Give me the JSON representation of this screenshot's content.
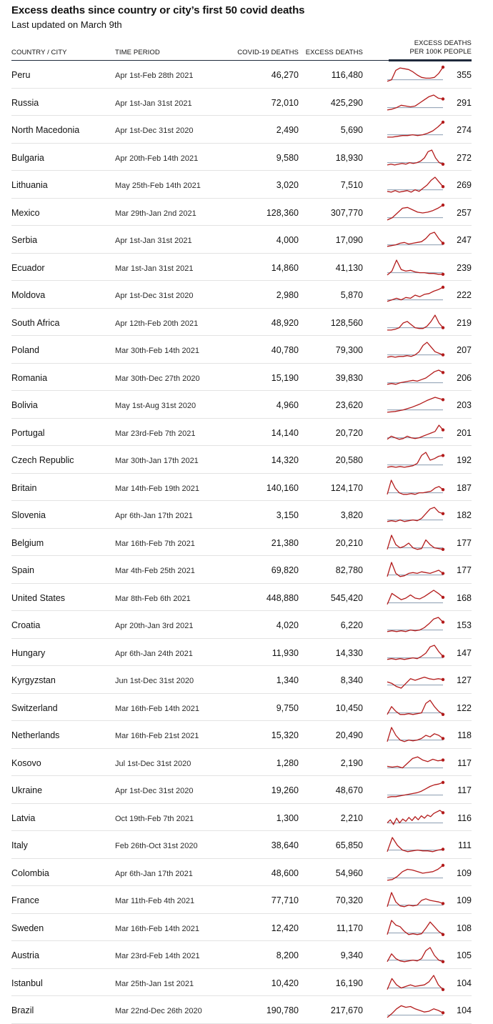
{
  "header": {
    "title": "Excess deaths since country or city’s first 50 covid deaths",
    "subtitle": "Last updated on March 9th"
  },
  "columns": {
    "country": "COUNTRY / CITY",
    "period": "TIME PERIOD",
    "covid": "COVID-19 DEATHS",
    "excess": "EXCESS DEATHS",
    "per_line1": "EXCESS DEATHS",
    "per_line2": "PER 100K PEOPLE"
  },
  "colors": {
    "line": "#b31b1b",
    "baseline": "#8a9bb0",
    "text": "#121212",
    "divider": "#1f2a3c"
  },
  "chart_data": {
    "type": "table",
    "columns": [
      "COUNTRY / CITY",
      "TIME PERIOD",
      "COVID-19 DEATHS",
      "EXCESS DEATHS",
      "EXCESS DEATHS PER 100K PEOPLE"
    ],
    "rows": [
      {
        "country": "Peru",
        "period": "Apr 1st-Feb 28th 2021",
        "covid": "46,270",
        "excess": "116,480",
        "rate": "355",
        "trend": [
          0.1,
          0.2,
          0.8,
          0.95,
          0.9,
          0.85,
          0.7,
          0.5,
          0.35,
          0.3,
          0.3,
          0.35,
          0.6,
          1.0
        ]
      },
      {
        "country": "Russia",
        "period": "Apr 1st-Jan 31st 2021",
        "covid": "72,010",
        "excess": "425,290",
        "rate": "291",
        "trend": [
          0.05,
          0.1,
          0.2,
          0.35,
          0.3,
          0.25,
          0.3,
          0.5,
          0.7,
          0.9,
          1.0,
          0.8,
          0.75
        ]
      },
      {
        "country": "North Macedonia",
        "period": "Apr 1st-Dec 31st 2020",
        "covid": "2,490",
        "excess": "5,690",
        "rate": "274",
        "trend": [
          0.05,
          0.05,
          0.1,
          0.15,
          0.15,
          0.2,
          0.15,
          0.2,
          0.3,
          0.45,
          0.7,
          1.0
        ]
      },
      {
        "country": "Bulgaria",
        "period": "Apr 20th-Feb 14th 2021",
        "covid": "9,580",
        "excess": "18,930",
        "rate": "272",
        "trend": [
          0.05,
          0.1,
          0.05,
          0.1,
          0.15,
          0.1,
          0.2,
          0.15,
          0.2,
          0.3,
          0.5,
          0.9,
          1.0,
          0.5,
          0.2,
          0.1
        ]
      },
      {
        "country": "Lithuania",
        "period": "May 25th-Feb 14th 2021",
        "covid": "3,020",
        "excess": "7,510",
        "rate": "269",
        "trend": [
          0.1,
          0.05,
          0.15,
          0.05,
          0.1,
          0.15,
          0.05,
          0.2,
          0.1,
          0.3,
          0.5,
          0.8,
          1.0,
          0.7,
          0.4
        ]
      },
      {
        "country": "Mexico",
        "period": "Mar 29th-Jan 2nd 2021",
        "covid": "128,360",
        "excess": "307,770",
        "rate": "257",
        "trend": [
          0.05,
          0.2,
          0.5,
          0.8,
          0.85,
          0.7,
          0.55,
          0.5,
          0.55,
          0.65,
          0.8,
          1.0
        ]
      },
      {
        "country": "Serbia",
        "period": "Apr 1st-Jan 31st 2021",
        "covid": "4,000",
        "excess": "17,090",
        "rate": "247",
        "trend": [
          0.1,
          0.15,
          0.2,
          0.3,
          0.35,
          0.25,
          0.3,
          0.35,
          0.4,
          0.6,
          0.9,
          1.0,
          0.6,
          0.3
        ]
      },
      {
        "country": "Ecuador",
        "period": "Mar 1st-Jan 31st 2021",
        "covid": "14,860",
        "excess": "41,130",
        "rate": "239",
        "trend": [
          0.05,
          0.3,
          1.0,
          0.4,
          0.3,
          0.35,
          0.25,
          0.2,
          0.2,
          0.15,
          0.15,
          0.1,
          0.1
        ]
      },
      {
        "country": "Moldova",
        "period": "Apr 1st-Dec 31st 2020",
        "covid": "2,980",
        "excess": "5,870",
        "rate": "222",
        "trend": [
          0.1,
          0.2,
          0.3,
          0.2,
          0.35,
          0.3,
          0.5,
          0.4,
          0.55,
          0.6,
          0.75,
          0.85,
          1.0
        ]
      },
      {
        "country": "South Africa",
        "period": "Apr 12th-Feb 20th 2021",
        "covid": "48,920",
        "excess": "128,560",
        "rate": "219",
        "trend": [
          0.05,
          0.05,
          0.1,
          0.2,
          0.5,
          0.6,
          0.4,
          0.2,
          0.15,
          0.15,
          0.3,
          0.6,
          1.0,
          0.5,
          0.2
        ]
      },
      {
        "country": "Poland",
        "period": "Mar 30th-Feb 14th 2021",
        "covid": "40,780",
        "excess": "79,300",
        "rate": "207",
        "trend": [
          0.05,
          0.1,
          0.05,
          0.1,
          0.1,
          0.15,
          0.1,
          0.2,
          0.4,
          0.8,
          1.0,
          0.7,
          0.4,
          0.3,
          0.2
        ]
      },
      {
        "country": "Romania",
        "period": "Mar 30th-Dec 27th 2020",
        "covid": "15,190",
        "excess": "39,830",
        "rate": "206",
        "trend": [
          0.1,
          0.15,
          0.1,
          0.2,
          0.25,
          0.3,
          0.35,
          0.3,
          0.4,
          0.5,
          0.7,
          0.9,
          1.0,
          0.85
        ]
      },
      {
        "country": "Bolivia",
        "period": "May 1st-Aug 31st 2020",
        "covid": "4,960",
        "excess": "23,620",
        "rate": "203",
        "trend": [
          0.05,
          0.1,
          0.2,
          0.35,
          0.55,
          0.8,
          1.0,
          0.85
        ]
      },
      {
        "country": "Portugal",
        "period": "Mar 23rd-Feb 7th 2021",
        "covid": "14,140",
        "excess": "20,720",
        "rate": "201",
        "trend": [
          0.1,
          0.3,
          0.2,
          0.1,
          0.15,
          0.3,
          0.2,
          0.15,
          0.2,
          0.3,
          0.4,
          0.5,
          0.6,
          1.0,
          0.7
        ]
      },
      {
        "country": "Czech Republic",
        "period": "Mar 30th-Jan 17th 2021",
        "covid": "14,320",
        "excess": "20,580",
        "rate": "192",
        "trend": [
          0.05,
          0.1,
          0.05,
          0.1,
          0.05,
          0.1,
          0.15,
          0.3,
          0.8,
          1.0,
          0.5,
          0.6,
          0.75,
          0.8
        ]
      },
      {
        "country": "Britain",
        "period": "Mar 14th-Feb 19th 2021",
        "covid": "140,160",
        "excess": "124,170",
        "rate": "187",
        "trend": [
          0.1,
          1.0,
          0.5,
          0.2,
          0.1,
          0.1,
          0.15,
          0.1,
          0.2,
          0.2,
          0.25,
          0.3,
          0.5,
          0.6,
          0.4
        ]
      },
      {
        "country": "Slovenia",
        "period": "Apr 6th-Jan 17th 2021",
        "covid": "3,150",
        "excess": "3,820",
        "rate": "182",
        "trend": [
          0.1,
          0.15,
          0.1,
          0.2,
          0.1,
          0.15,
          0.2,
          0.15,
          0.3,
          0.6,
          0.9,
          1.0,
          0.7,
          0.6
        ]
      },
      {
        "country": "Belgium",
        "period": "Mar 16th-Feb 7th 2021",
        "covid": "21,380",
        "excess": "20,210",
        "rate": "177",
        "trend": [
          0.1,
          1.0,
          0.4,
          0.2,
          0.3,
          0.5,
          0.2,
          0.1,
          0.15,
          0.7,
          0.4,
          0.2,
          0.15,
          0.1
        ]
      },
      {
        "country": "Spain",
        "period": "Mar 4th-Feb 25th 2021",
        "covid": "69,820",
        "excess": "82,780",
        "rate": "177",
        "trend": [
          0.1,
          1.0,
          0.3,
          0.1,
          0.15,
          0.3,
          0.35,
          0.3,
          0.4,
          0.35,
          0.3,
          0.4,
          0.5,
          0.3
        ]
      },
      {
        "country": "United States",
        "period": "Mar 8th-Feb 6th 2021",
        "covid": "448,880",
        "excess": "545,420",
        "rate": "168",
        "trend": [
          0.1,
          0.8,
          0.6,
          0.4,
          0.5,
          0.7,
          0.5,
          0.45,
          0.6,
          0.8,
          1.0,
          0.8,
          0.55
        ]
      },
      {
        "country": "Croatia",
        "period": "Apr 20th-Jan 3rd 2021",
        "covid": "4,020",
        "excess": "6,220",
        "rate": "153",
        "trend": [
          0.1,
          0.15,
          0.1,
          0.15,
          0.1,
          0.2,
          0.15,
          0.2,
          0.35,
          0.6,
          0.9,
          1.0,
          0.7
        ]
      },
      {
        "country": "Hungary",
        "period": "Apr 6th-Jan 24th 2021",
        "covid": "11,930",
        "excess": "14,330",
        "rate": "147",
        "trend": [
          0.1,
          0.15,
          0.1,
          0.15,
          0.1,
          0.15,
          0.2,
          0.15,
          0.3,
          0.5,
          0.9,
          1.0,
          0.6,
          0.3
        ]
      },
      {
        "country": "Kyrgyzstan",
        "period": "Jun 1st-Dec 31st 2020",
        "covid": "1,340",
        "excess": "8,340",
        "rate": "127",
        "trend": [
          0.4,
          0.3,
          0.1,
          0.0,
          0.3,
          0.6,
          0.5,
          0.6,
          0.7,
          0.6,
          0.55,
          0.6,
          0.55
        ]
      },
      {
        "country": "Switzerland",
        "period": "Mar 16th-Feb 14th 2021",
        "covid": "9,750",
        "excess": "10,450",
        "rate": "122",
        "trend": [
          0.1,
          0.6,
          0.3,
          0.1,
          0.1,
          0.15,
          0.1,
          0.15,
          0.2,
          0.8,
          1.0,
          0.6,
          0.3,
          0.1
        ]
      },
      {
        "country": "Netherlands",
        "period": "Mar 16th-Feb 21st 2021",
        "covid": "15,320",
        "excess": "20,490",
        "rate": "118",
        "trend": [
          0.1,
          1.0,
          0.5,
          0.2,
          0.1,
          0.2,
          0.15,
          0.2,
          0.3,
          0.5,
          0.4,
          0.6,
          0.5,
          0.3
        ]
      },
      {
        "country": "Kosovo",
        "period": "Jul 1st-Dec 31st 2020",
        "covid": "1,280",
        "excess": "2,190",
        "rate": "117",
        "trend": [
          0.3,
          0.25,
          0.3,
          0.2,
          0.5,
          0.8,
          0.9,
          0.7,
          0.6,
          0.75,
          0.65,
          0.7
        ]
      },
      {
        "country": "Ukraine",
        "period": "Apr 1st-Dec 31st 2020",
        "covid": "19,260",
        "excess": "48,670",
        "rate": "117",
        "trend": [
          0.05,
          0.1,
          0.1,
          0.15,
          0.2,
          0.25,
          0.3,
          0.35,
          0.45,
          0.6,
          0.75,
          0.85,
          0.9,
          1.0
        ]
      },
      {
        "country": "Latvia",
        "period": "Oct 19th-Feb 7th 2021",
        "covid": "1,300",
        "excess": "2,210",
        "rate": "116",
        "trend": [
          0.2,
          0.4,
          0.1,
          0.5,
          0.2,
          0.45,
          0.3,
          0.55,
          0.35,
          0.6,
          0.4,
          0.65,
          0.5,
          0.7,
          0.6,
          0.8,
          0.9,
          1.0,
          0.85
        ]
      },
      {
        "country": "Italy",
        "period": "Feb 26th-Oct 31st 2020",
        "covid": "38,640",
        "excess": "65,850",
        "rate": "111",
        "trend": [
          0.1,
          1.0,
          0.5,
          0.2,
          0.1,
          0.15,
          0.2,
          0.15,
          0.15,
          0.1,
          0.2,
          0.25
        ]
      },
      {
        "country": "Colombia",
        "period": "Apr 6th-Jan 17th 2021",
        "covid": "48,600",
        "excess": "54,960",
        "rate": "109",
        "trend": [
          0.05,
          0.1,
          0.3,
          0.6,
          0.75,
          0.7,
          0.6,
          0.5,
          0.55,
          0.6,
          0.75,
          1.0
        ]
      },
      {
        "country": "France",
        "period": "Mar 11th-Feb 4th 2021",
        "covid": "77,710",
        "excess": "70,320",
        "rate": "109",
        "trend": [
          0.1,
          1.0,
          0.4,
          0.15,
          0.1,
          0.2,
          0.15,
          0.2,
          0.5,
          0.6,
          0.5,
          0.45,
          0.4,
          0.3
        ]
      },
      {
        "country": "Sweden",
        "period": "Mar 16th-Feb 14th 2021",
        "covid": "12,420",
        "excess": "11,170",
        "rate": "108",
        "trend": [
          0.1,
          1.0,
          0.7,
          0.6,
          0.3,
          0.1,
          0.15,
          0.1,
          0.15,
          0.5,
          0.9,
          0.6,
          0.3,
          0.1
        ]
      },
      {
        "country": "Austria",
        "period": "Mar 23rd-Feb 14th 2021",
        "covid": "8,200",
        "excess": "9,340",
        "rate": "105",
        "trend": [
          0.1,
          0.6,
          0.3,
          0.15,
          0.1,
          0.15,
          0.2,
          0.15,
          0.3,
          0.8,
          1.0,
          0.5,
          0.2,
          0.1
        ]
      },
      {
        "country": "Istanbul",
        "period": "Mar 25th-Jan 1st 2021",
        "covid": "10,420",
        "excess": "16,190",
        "rate": "104",
        "trend": [
          0.1,
          0.8,
          0.4,
          0.2,
          0.3,
          0.4,
          0.3,
          0.35,
          0.4,
          0.6,
          1.0,
          0.4,
          0.1
        ]
      },
      {
        "country": "Brazil",
        "period": "Mar 22nd-Dec 26th 2020",
        "covid": "190,780",
        "excess": "217,670",
        "rate": "104",
        "trend": [
          0.05,
          0.3,
          0.6,
          0.8,
          0.7,
          0.75,
          0.6,
          0.5,
          0.4,
          0.45,
          0.6,
          0.5,
          0.35
        ]
      }
    ]
  }
}
